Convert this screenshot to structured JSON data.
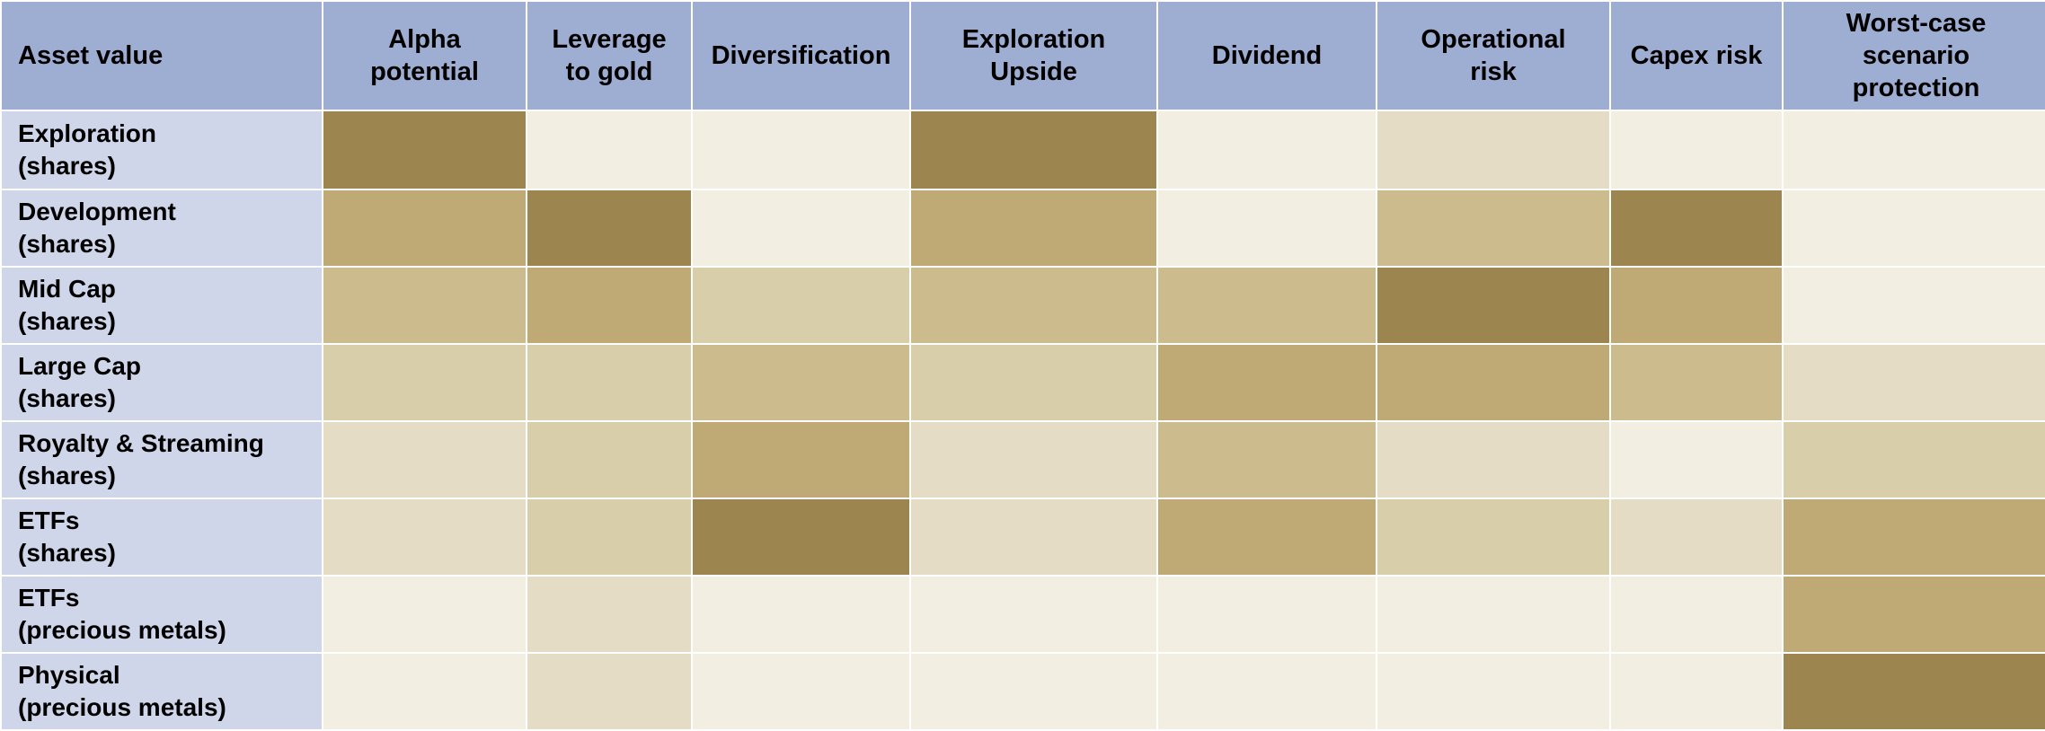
{
  "chart_data": {
    "type": "heatmap",
    "corner_label": "Asset value",
    "columns": [
      "Alpha\npotential",
      "Leverage\nto gold",
      "Diversification",
      "Exploration\nUpside",
      "Dividend",
      "Operational\nrisk",
      "Capex risk",
      "Worst-case\nscenario\nprotection"
    ],
    "rows": [
      "Exploration\n(shares)",
      "Development\n(shares)",
      "Mid Cap\n(shares)",
      "Large Cap\n(shares)",
      "Royalty & Streaming\n(shares)",
      "ETFs\n(shares)",
      "ETFs\n(precious metals)",
      "Physical\n(precious metals)"
    ],
    "values": [
      [
        5,
        0,
        0,
        5,
        0,
        1,
        0,
        0
      ],
      [
        4,
        5,
        0,
        4,
        0,
        3,
        5,
        0
      ],
      [
        3,
        4,
        2,
        3,
        3,
        5,
        4,
        0
      ],
      [
        2,
        2,
        3,
        2,
        4,
        4,
        3,
        1
      ],
      [
        1,
        2,
        4,
        1,
        3,
        1,
        0,
        2
      ],
      [
        1,
        2,
        5,
        1,
        4,
        2,
        1,
        4
      ],
      [
        0,
        1,
        0,
        0,
        0,
        0,
        0,
        4
      ],
      [
        0,
        1,
        0,
        0,
        0,
        0,
        0,
        5
      ]
    ],
    "value_range": [
      0,
      5
    ],
    "color_scale": [
      "#f2eee2",
      "#e4dcc5",
      "#d8ceaa",
      "#cbbb8d",
      "#bfa975",
      "#9c854e"
    ],
    "header_color": "#9eadd2",
    "row_header_color": "#d0d6ea"
  }
}
